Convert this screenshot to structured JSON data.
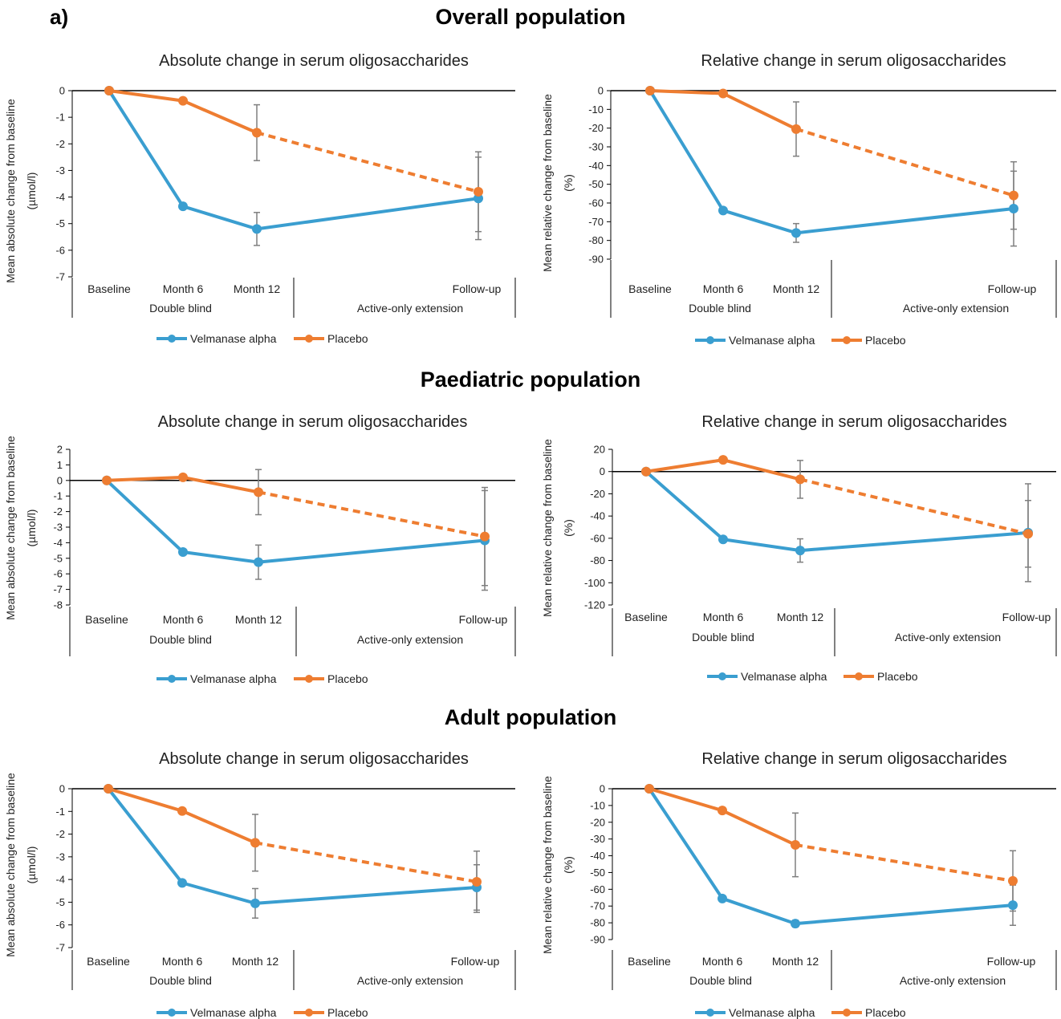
{
  "figure_label": "a)",
  "sections": [
    "Overall population",
    "Paediatric population",
    "Adult population"
  ],
  "colors": {
    "velmanase": "#3a9ed0",
    "placebo": "#ee7d31",
    "error_bar": "#7f7f7f",
    "axis": "#000000"
  },
  "chart_data": [
    {
      "id": "overall-absolute",
      "section": "Overall population",
      "type": "line",
      "title": "Absolute change in serum oligosaccharides",
      "ylabel_lines": [
        "Mean absolute change from baseline",
        "(µmol/l)"
      ],
      "categories": [
        "Baseline",
        "Month 6",
        "Month 12",
        "Follow-up"
      ],
      "groups": [
        "Double blind",
        "Active-only extension"
      ],
      "ylim": [
        -7,
        0
      ],
      "yticks": [
        0,
        -1,
        -2,
        -3,
        -4,
        -5,
        -6,
        -7
      ],
      "series": [
        {
          "name": "Velmanase alpha",
          "values": [
            0,
            -4.35,
            -5.2,
            -4.05
          ],
          "error": [
            null,
            null,
            0.62,
            1.55
          ]
        },
        {
          "name": "Placebo",
          "values": [
            0,
            -0.38,
            -1.58,
            -3.8
          ],
          "error": [
            null,
            null,
            1.05,
            1.5
          ]
        }
      ],
      "legend": [
        "Velmanase alpha",
        "Placebo"
      ]
    },
    {
      "id": "overall-relative",
      "section": "Overall population",
      "type": "line",
      "title": "Relative change in serum oligosaccharides",
      "ylabel_lines": [
        "Mean relative change from baseline",
        "(%)"
      ],
      "categories": [
        "Baseline",
        "Month 6",
        "Month 12",
        "Follow-up"
      ],
      "groups": [
        "Double blind",
        "Active-only extension"
      ],
      "ylim": [
        -90,
        0
      ],
      "yticks": [
        0,
        -10,
        -20,
        -30,
        -40,
        -50,
        -60,
        -70,
        -80,
        -90
      ],
      "series": [
        {
          "name": "Velmanase alpha",
          "values": [
            0,
            -64,
            -76,
            -63
          ],
          "error": [
            null,
            null,
            5,
            20
          ]
        },
        {
          "name": "Placebo",
          "values": [
            0,
            -1.5,
            -20.5,
            -56
          ],
          "error": [
            null,
            null,
            14.5,
            18
          ]
        }
      ],
      "legend": [
        "Velmanase alpha",
        "Placebo"
      ]
    },
    {
      "id": "paediatric-absolute",
      "section": "Paediatric population",
      "type": "line",
      "title": "Absolute change in serum oligosaccharides",
      "ylabel_lines": [
        "Mean absolute change from baseline",
        "(µmol/l)"
      ],
      "categories": [
        "Baseline",
        "Month 6",
        "Month 12",
        "Follow-up"
      ],
      "groups": [
        "Double blind",
        "Active-only extension"
      ],
      "ylim": [
        -8,
        2
      ],
      "yticks": [
        2,
        1,
        0,
        -1,
        -2,
        -3,
        -4,
        -5,
        -6,
        -7,
        -8
      ],
      "series": [
        {
          "name": "Velmanase alpha",
          "values": [
            0,
            -4.6,
            -5.25,
            -3.85
          ],
          "error": [
            null,
            null,
            1.1,
            3.2
          ]
        },
        {
          "name": "Placebo",
          "values": [
            0,
            0.2,
            -0.75,
            -3.6
          ],
          "error": [
            null,
            null,
            1.45,
            3.15
          ]
        }
      ],
      "legend": [
        "Velmanase alpha",
        "Placebo"
      ]
    },
    {
      "id": "paediatric-relative",
      "section": "Paediatric population",
      "type": "line",
      "title": "Relative change in serum oligosaccharides",
      "ylabel_lines": [
        "Mean relative change from baseline",
        "(%)"
      ],
      "categories": [
        "Baseline",
        "Month 6",
        "Month 12",
        "Follow-up"
      ],
      "groups": [
        "Double blind",
        "Active-only extension"
      ],
      "ylim": [
        -120,
        20
      ],
      "yticks": [
        20,
        0,
        -20,
        -40,
        -60,
        -80,
        -100,
        -120
      ],
      "series": [
        {
          "name": "Velmanase alpha",
          "values": [
            0,
            -61,
            -71,
            -55
          ],
          "error": [
            null,
            null,
            10.5,
            44
          ]
        },
        {
          "name": "Placebo",
          "values": [
            0,
            10.5,
            -7,
            -56
          ],
          "error": [
            null,
            null,
            17,
            30
          ]
        }
      ],
      "legend": [
        "Velmanase alpha",
        "Placebo"
      ]
    },
    {
      "id": "adult-absolute",
      "section": "Adult population",
      "type": "line",
      "title": "Absolute change in serum oligosaccharides",
      "ylabel_lines": [
        "Mean absolute change from baseline",
        "(µmol/l)"
      ],
      "categories": [
        "Baseline",
        "Month 6",
        "Month 12",
        "Follow-up"
      ],
      "groups": [
        "Double blind",
        "Active-only extension"
      ],
      "ylim": [
        -7,
        0
      ],
      "yticks": [
        0,
        -1,
        -2,
        -3,
        -4,
        -5,
        -6,
        -7
      ],
      "series": [
        {
          "name": "Velmanase alpha",
          "values": [
            0,
            -4.15,
            -5.05,
            -4.35
          ],
          "error": [
            null,
            null,
            0.65,
            1.0
          ]
        },
        {
          "name": "Placebo",
          "values": [
            0,
            -0.98,
            -2.38,
            -4.1
          ],
          "error": [
            null,
            null,
            1.25,
            1.35
          ]
        }
      ],
      "legend": [
        "Velmanase alpha",
        "Placebo"
      ]
    },
    {
      "id": "adult-relative",
      "section": "Adult population",
      "type": "line",
      "title": "Relative change in serum oligosaccharides",
      "ylabel_lines": [
        "Mean relative change from baseline",
        "(%)"
      ],
      "categories": [
        "Baseline",
        "Month 6",
        "Month 12",
        "Follow-up"
      ],
      "groups": [
        "Double blind",
        "Active-only extension"
      ],
      "ylim": [
        -90,
        0
      ],
      "yticks": [
        0,
        -10,
        -20,
        -30,
        -40,
        -50,
        -60,
        -70,
        -80,
        -90
      ],
      "series": [
        {
          "name": "Velmanase alpha",
          "values": [
            0,
            -65.5,
            -80.5,
            -69.5
          ],
          "error": [
            null,
            null,
            2,
            12
          ]
        },
        {
          "name": "Placebo",
          "values": [
            0,
            -13,
            -33.5,
            -55
          ],
          "error": [
            null,
            null,
            19,
            18
          ]
        }
      ],
      "legend": [
        "Velmanase alpha",
        "Placebo"
      ]
    }
  ]
}
